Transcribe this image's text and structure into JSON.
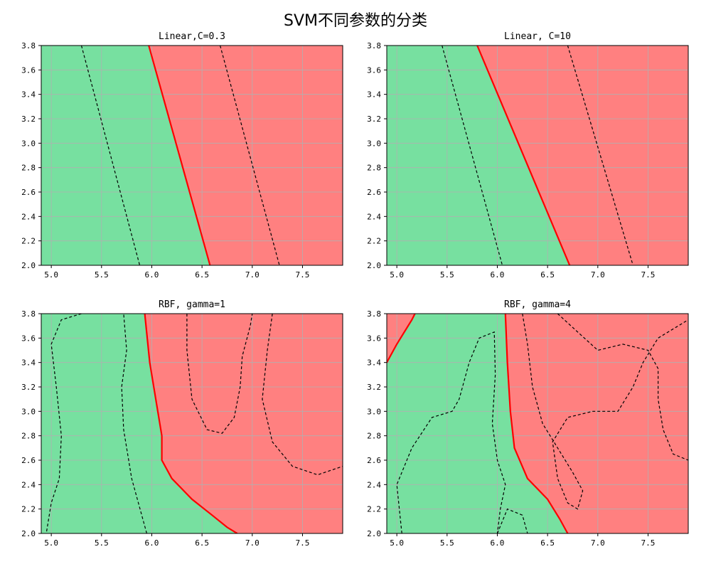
{
  "figure": {
    "title": "SVM不同参数的分类",
    "colors": {
      "class0_region": "#77e0a0",
      "class1_region": "#ff8080",
      "class0_point": "#0d7a0d",
      "class1_point": "#ff0000",
      "boundary": "#ff0000",
      "margin": "#000000",
      "grid": "#b0b0b0"
    }
  },
  "chart_data": [
    {
      "type": "scatter",
      "title": "Linear,C=0.3",
      "xlim": [
        4.9,
        7.9
      ],
      "ylim": [
        2.0,
        3.8
      ],
      "xticks": [
        "5.0",
        "5.5",
        "6.0",
        "6.5",
        "7.0",
        "7.5"
      ],
      "yticks": [
        "2.0",
        "2.2",
        "2.4",
        "2.6",
        "2.8",
        "3.0",
        "3.2",
        "3.4",
        "3.6",
        "3.8"
      ],
      "grid": true,
      "decision_boundary": [
        [
          5.97,
          3.8
        ],
        [
          6.58,
          2.0
        ]
      ],
      "margins": [
        [
          [
            5.3,
            3.8
          ],
          [
            5.88,
            2.0
          ]
        ],
        [
          [
            6.68,
            3.8
          ],
          [
            7.27,
            2.0
          ]
        ]
      ]
    },
    {
      "type": "scatter",
      "title": "Linear, C=10",
      "xlim": [
        4.9,
        7.9
      ],
      "ylim": [
        2.0,
        3.8
      ],
      "xticks": [
        "5.0",
        "5.5",
        "6.0",
        "6.5",
        "7.0",
        "7.5"
      ],
      "yticks": [
        "2.0",
        "2.2",
        "2.4",
        "2.6",
        "2.8",
        "3.0",
        "3.2",
        "3.4",
        "3.6",
        "3.8"
      ],
      "grid": true,
      "decision_boundary": [
        [
          5.8,
          3.8
        ],
        [
          6.72,
          2.0
        ]
      ],
      "margins": [
        [
          [
            5.45,
            3.8
          ],
          [
            6.05,
            2.0
          ]
        ],
        [
          [
            6.7,
            3.8
          ],
          [
            7.35,
            2.0
          ]
        ]
      ]
    },
    {
      "type": "scatter",
      "title": "RBF, gamma=1",
      "xlim": [
        4.9,
        7.9
      ],
      "ylim": [
        2.0,
        3.8
      ],
      "xticks": [
        "5.0",
        "5.5",
        "6.0",
        "6.5",
        "7.0",
        "7.5"
      ],
      "yticks": [
        "2.0",
        "2.2",
        "2.4",
        "2.6",
        "2.8",
        "3.0",
        "3.2",
        "3.4",
        "3.6",
        "3.8"
      ],
      "grid": true,
      "decision_boundary": [
        [
          5.93,
          3.8
        ],
        [
          5.98,
          3.4
        ],
        [
          6.05,
          3.05
        ],
        [
          6.1,
          2.8
        ],
        [
          6.1,
          2.6
        ],
        [
          6.2,
          2.45
        ],
        [
          6.4,
          2.28
        ],
        [
          6.6,
          2.15
        ],
        [
          6.75,
          2.05
        ],
        [
          6.85,
          2.0
        ]
      ],
      "margins": [
        [
          [
            5.3,
            3.8
          ],
          [
            5.1,
            3.75
          ],
          [
            5.0,
            3.55
          ],
          [
            5.05,
            3.2
          ],
          [
            5.1,
            2.8
          ],
          [
            5.08,
            2.45
          ],
          [
            5.0,
            2.25
          ],
          [
            4.95,
            2.0
          ]
        ],
        [
          [
            5.95,
            2.0
          ],
          [
            5.8,
            2.45
          ],
          [
            5.72,
            2.85
          ],
          [
            5.7,
            3.2
          ],
          [
            5.75,
            3.5
          ],
          [
            5.72,
            3.8
          ]
        ],
        [
          [
            6.35,
            3.8
          ],
          [
            6.35,
            3.5
          ],
          [
            6.4,
            3.1
          ],
          [
            6.55,
            2.85
          ],
          [
            6.7,
            2.82
          ],
          [
            6.82,
            2.95
          ],
          [
            6.88,
            3.2
          ],
          [
            6.9,
            3.45
          ],
          [
            6.98,
            3.7
          ],
          [
            7.0,
            3.8
          ]
        ],
        [
          [
            7.2,
            3.8
          ],
          [
            7.15,
            3.5
          ],
          [
            7.1,
            3.1
          ],
          [
            7.2,
            2.75
          ],
          [
            7.4,
            2.55
          ],
          [
            7.65,
            2.48
          ],
          [
            7.9,
            2.55
          ]
        ]
      ]
    },
    {
      "type": "scatter",
      "title": "RBF, gamma=4",
      "xlim": [
        4.9,
        7.9
      ],
      "ylim": [
        2.0,
        3.8
      ],
      "xticks": [
        "5.0",
        "5.5",
        "6.0",
        "6.5",
        "7.0",
        "7.5"
      ],
      "yticks": [
        "2.0",
        "2.2",
        "2.4",
        "2.6",
        "2.8",
        "3.0",
        "3.2",
        "3.4",
        "3.6",
        "3.8"
      ],
      "grid": true,
      "decision_boundary": [
        [
          6.08,
          3.8
        ],
        [
          6.1,
          3.4
        ],
        [
          6.13,
          3.0
        ],
        [
          6.17,
          2.7
        ],
        [
          6.3,
          2.45
        ],
        [
          6.5,
          2.28
        ],
        [
          6.62,
          2.12
        ],
        [
          6.7,
          2.0
        ]
      ],
      "secondary_boundary": [
        [
          4.9,
          3.4
        ],
        [
          5.0,
          3.55
        ],
        [
          5.15,
          3.75
        ],
        [
          5.18,
          3.8
        ]
      ],
      "margins": [
        [
          [
            5.05,
            2.0
          ],
          [
            5.0,
            2.4
          ],
          [
            5.15,
            2.7
          ],
          [
            5.35,
            2.95
          ],
          [
            5.55,
            3.0
          ],
          [
            5.62,
            3.1
          ],
          [
            5.72,
            3.4
          ],
          [
            5.82,
            3.6
          ],
          [
            5.97,
            3.65
          ],
          [
            5.98,
            3.3
          ],
          [
            5.95,
            2.9
          ],
          [
            6.0,
            2.6
          ],
          [
            6.08,
            2.4
          ],
          [
            6.03,
            2.2
          ],
          [
            6.0,
            2.0
          ]
        ],
        [
          [
            6.0,
            2.0
          ],
          [
            6.1,
            2.2
          ],
          [
            6.25,
            2.15
          ],
          [
            6.3,
            2.0
          ]
        ],
        [
          [
            6.25,
            3.8
          ],
          [
            6.3,
            3.55
          ],
          [
            6.35,
            3.2
          ],
          [
            6.45,
            2.9
          ],
          [
            6.6,
            2.7
          ],
          [
            6.75,
            2.5
          ],
          [
            6.85,
            2.35
          ],
          [
            6.8,
            2.2
          ],
          [
            6.7,
            2.25
          ],
          [
            6.6,
            2.45
          ],
          [
            6.55,
            2.75
          ],
          [
            6.7,
            2.95
          ],
          [
            6.95,
            3.0
          ],
          [
            7.2,
            3.0
          ],
          [
            7.35,
            3.2
          ],
          [
            7.45,
            3.4
          ],
          [
            7.6,
            3.6
          ],
          [
            7.8,
            3.7
          ],
          [
            7.9,
            3.75
          ]
        ],
        [
          [
            6.6,
            3.8
          ],
          [
            6.8,
            3.65
          ],
          [
            7.0,
            3.5
          ],
          [
            7.25,
            3.55
          ],
          [
            7.5,
            3.5
          ],
          [
            7.6,
            3.35
          ],
          [
            7.6,
            3.1
          ],
          [
            7.65,
            2.85
          ],
          [
            7.75,
            2.65
          ],
          [
            7.9,
            2.6
          ]
        ]
      ]
    }
  ]
}
